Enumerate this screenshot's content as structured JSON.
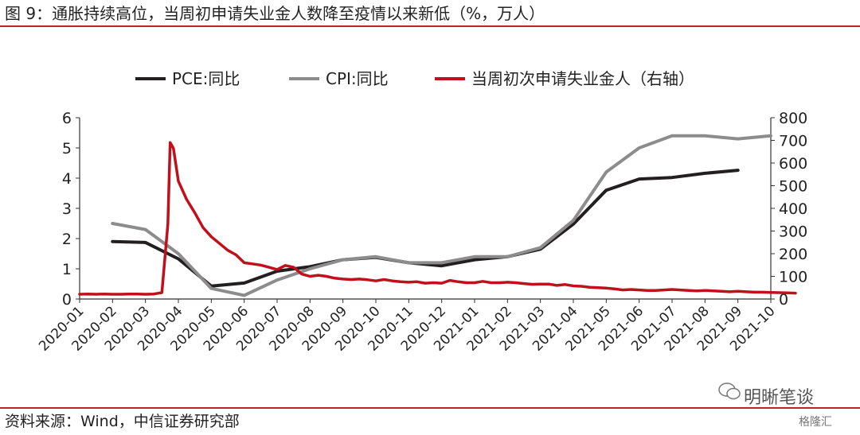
{
  "header": {
    "title": "图 9：通胀持续高位，当周初申请失业金人数降至疫情以来新低（%，万人）"
  },
  "footer": {
    "source": "资料来源：Wind，中信证券研究部",
    "watermark": "明晰笔谈",
    "corner": "格隆汇"
  },
  "colors": {
    "pce": "#231f20",
    "cpi": "#8c8c8c",
    "claims": "#c0101c",
    "rule": "#b8232f"
  },
  "chart_data": {
    "type": "line",
    "categories": [
      "2020-01",
      "2020-02",
      "2020-03",
      "2020-04",
      "2020-05",
      "2020-06",
      "2020-07",
      "2020-08",
      "2020-09",
      "2020-10",
      "2020-11",
      "2020-12",
      "2021-01",
      "2021-02",
      "2021-03",
      "2021-04",
      "2021-05",
      "2021-06",
      "2021-07",
      "2021-08",
      "2021-09",
      "2021-10"
    ],
    "y_left": {
      "ticks": [
        "0",
        "1",
        "2",
        "3",
        "4",
        "5",
        "6"
      ],
      "range": [
        0,
        6
      ]
    },
    "y_right": {
      "ticks": [
        "0",
        "100",
        "200",
        "300",
        "400",
        "500",
        "600",
        "700",
        "800"
      ],
      "range": [
        0,
        800
      ]
    },
    "legend_placement": "top",
    "series": [
      {
        "name": "PCE:同比",
        "axis": "left",
        "x": [
          1,
          2,
          3,
          4,
          5,
          6,
          7,
          8,
          9,
          10,
          11,
          12,
          13,
          14,
          15,
          16,
          17,
          18,
          19,
          20
        ],
        "values": [
          1.9,
          1.87,
          1.33,
          0.43,
          0.53,
          0.92,
          1.07,
          1.3,
          1.38,
          1.2,
          1.1,
          1.3,
          1.4,
          1.65,
          2.48,
          3.6,
          3.97,
          4.02,
          4.16,
          4.26
        ]
      },
      {
        "name": "CPI:同比",
        "axis": "left",
        "x": [
          1,
          2,
          3,
          4,
          5,
          6,
          7,
          8,
          9,
          10,
          11,
          12,
          13,
          14,
          15,
          16,
          17,
          18,
          19,
          20,
          21
        ],
        "values": [
          2.5,
          2.3,
          1.5,
          0.35,
          0.12,
          0.63,
          1.0,
          1.3,
          1.4,
          1.2,
          1.2,
          1.4,
          1.4,
          1.7,
          2.6,
          4.2,
          5.0,
          5.4,
          5.4,
          5.3,
          5.4
        ]
      },
      {
        "name": "当周初次申请失业金人（右轴）",
        "axis": "right",
        "x": [
          0,
          0.25,
          0.5,
          0.75,
          1,
          1.25,
          1.5,
          1.75,
          2,
          2.25,
          2.5,
          2.68,
          2.75,
          2.85,
          3.0,
          3.25,
          3.5,
          3.75,
          4,
          4.25,
          4.5,
          4.75,
          5,
          5.25,
          5.5,
          5.75,
          6,
          6.25,
          6.5,
          6.75,
          7,
          7.25,
          7.5,
          7.75,
          8,
          8.25,
          8.5,
          8.75,
          9,
          9.25,
          9.5,
          9.75,
          10,
          10.25,
          10.5,
          10.75,
          11,
          11.25,
          11.5,
          11.75,
          12,
          12.25,
          12.5,
          12.75,
          13,
          13.25,
          13.5,
          13.75,
          14,
          14.25,
          14.5,
          14.75,
          15,
          15.25,
          15.5,
          15.75,
          16,
          16.25,
          16.5,
          16.75,
          17,
          17.25,
          17.5,
          17.75,
          18,
          18.25,
          18.5,
          18.75,
          19,
          19.25,
          19.5,
          19.75,
          20,
          20.25,
          20.5,
          20.75,
          21,
          21.25,
          21.5,
          21.75
        ],
        "values": [
          21,
          22,
          21,
          22,
          21,
          21,
          22,
          22,
          21,
          22,
          28,
          330,
          690,
          665,
          520,
          440,
          380,
          315,
          275,
          245,
          215,
          195,
          160,
          155,
          150,
          140,
          130,
          148,
          140,
          110,
          100,
          105,
          100,
          92,
          88,
          86,
          88,
          85,
          80,
          86,
          80,
          76,
          74,
          76,
          70,
          72,
          70,
          82,
          76,
          72,
          72,
          78,
          72,
          72,
          74,
          72,
          68,
          65,
          66,
          66,
          60,
          64,
          58,
          56,
          52,
          50,
          48,
          45,
          40,
          42,
          40,
          38,
          38,
          40,
          42,
          40,
          38,
          36,
          38,
          36,
          34,
          32,
          34,
          32,
          30,
          30,
          29,
          28,
          27,
          26
        ]
      }
    ]
  }
}
